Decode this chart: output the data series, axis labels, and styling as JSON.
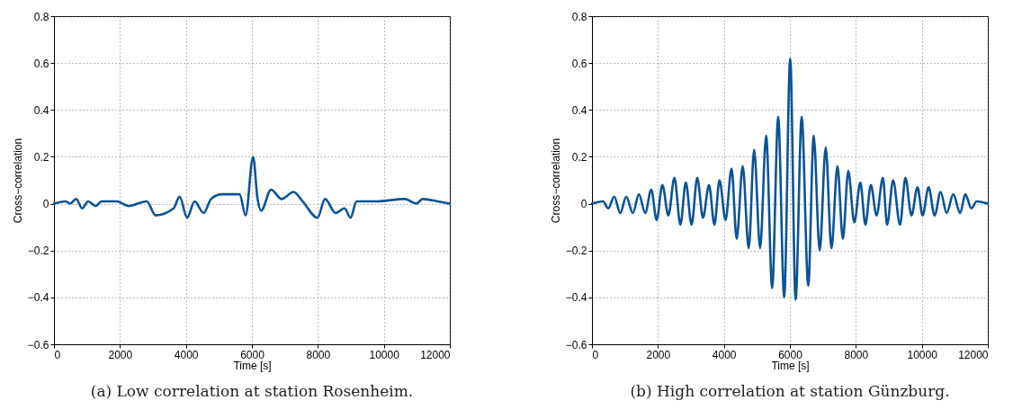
{
  "chart_data": [
    {
      "type": "line",
      "xlabel": "Time [s]",
      "ylabel": "Cross−correlation",
      "annotations": [
        "(a) Low correlation at station Rosenheim."
      ],
      "xlim": [
        0,
        12000
      ],
      "ylim": [
        -0.6,
        0.8
      ],
      "xticks": [
        0,
        2000,
        4000,
        6000,
        8000,
        10000,
        12000
      ],
      "yticks": [
        -0.6,
        -0.4,
        -0.2,
        0,
        0.2,
        0.4,
        0.6,
        0.8
      ],
      "grid": true,
      "x": [
        0,
        355,
        491,
        673,
        855,
        1036,
        1264,
        1445,
        1900,
        2263,
        2809,
        3082,
        3627,
        3809,
        4036,
        4263,
        4536,
        4763,
        5081,
        5354,
        5627,
        5809,
        6036,
        6172,
        6281,
        6581,
        6899,
        7263,
        7536,
        7990,
        8218,
        8536,
        8808,
        8990,
        9172,
        9808,
        10627,
        10990,
        11172,
        11626,
        12000
      ],
      "series": [
        {
          "color": "#0b5394",
          "values": [
            0,
            0.01,
            0,
            0.02,
            -0.02,
            0.01,
            -0.01,
            0.01,
            0.01,
            -0.01,
            0.01,
            -0.05,
            -0.02,
            0.03,
            -0.06,
            0.01,
            -0.04,
            0.02,
            0.04,
            0.04,
            0.04,
            -0.05,
            0.2,
            0.02,
            -0.03,
            0.06,
            0.02,
            0.05,
            0.01,
            -0.06,
            0.02,
            -0.04,
            -0.02,
            -0.06,
            0.01,
            0.01,
            0.02,
            0,
            0.02,
            0.01,
            0
          ]
        }
      ]
    },
    {
      "type": "line",
      "xlabel": "Time [s]",
      "ylabel": "Cross−correlation",
      "annotations": [
        "(b) High correlation at station Günzburg."
      ],
      "xlim": [
        0,
        12000
      ],
      "ylim": [
        -0.6,
        0.8
      ],
      "xticks": [
        0,
        2000,
        4000,
        6000,
        8000,
        10000,
        12000
      ],
      "yticks": [
        -0.6,
        -0.4,
        -0.2,
        0,
        0.2,
        0.4,
        0.6,
        0.8
      ],
      "grid": true,
      "x": [
        0,
        337,
        492,
        675,
        857,
        1040,
        1240,
        1423,
        1614,
        1797,
        1961,
        2134,
        2316,
        2499,
        2681,
        2845,
        3019,
        3192,
        3365,
        3548,
        3712,
        3867,
        4049,
        4232,
        4387,
        4569,
        4752,
        4916,
        5098,
        5280,
        5463,
        5645,
        5828,
        6010,
        6174,
        6357,
        6557,
        6721,
        6904,
        7086,
        7260,
        7442,
        7606,
        7770,
        7953,
        8135,
        8290,
        8454,
        8628,
        8819,
        8947,
        9129,
        9339,
        9503,
        9685,
        9868,
        10023,
        10205,
        10388,
        10570,
        10752,
        10953,
        11163,
        11318,
        11500,
        11664,
        12000
      ],
      "series": [
        {
          "color": "#0b5394",
          "values": [
            0,
            0.01,
            -0.02,
            0.03,
            -0.04,
            0.03,
            -0.04,
            0.04,
            -0.04,
            0.06,
            -0.07,
            0.08,
            -0.05,
            0.11,
            -0.09,
            0.09,
            -0.09,
            0.11,
            -0.06,
            0.08,
            -0.09,
            0.1,
            -0.07,
            0.15,
            -0.15,
            0.16,
            -0.19,
            0.23,
            -0.19,
            0.29,
            -0.36,
            0.37,
            -0.4,
            0.62,
            -0.41,
            0.37,
            -0.35,
            0.29,
            -0.2,
            0.24,
            -0.19,
            0.16,
            -0.15,
            0.14,
            -0.08,
            0.09,
            -0.09,
            0.08,
            -0.05,
            0.11,
            -0.09,
            0.1,
            -0.09,
            0.11,
            -0.05,
            0.07,
            -0.05,
            0.07,
            -0.05,
            0.05,
            -0.04,
            0.04,
            -0.04,
            0.04,
            -0.02,
            0.01,
            0
          ]
        }
      ]
    }
  ]
}
